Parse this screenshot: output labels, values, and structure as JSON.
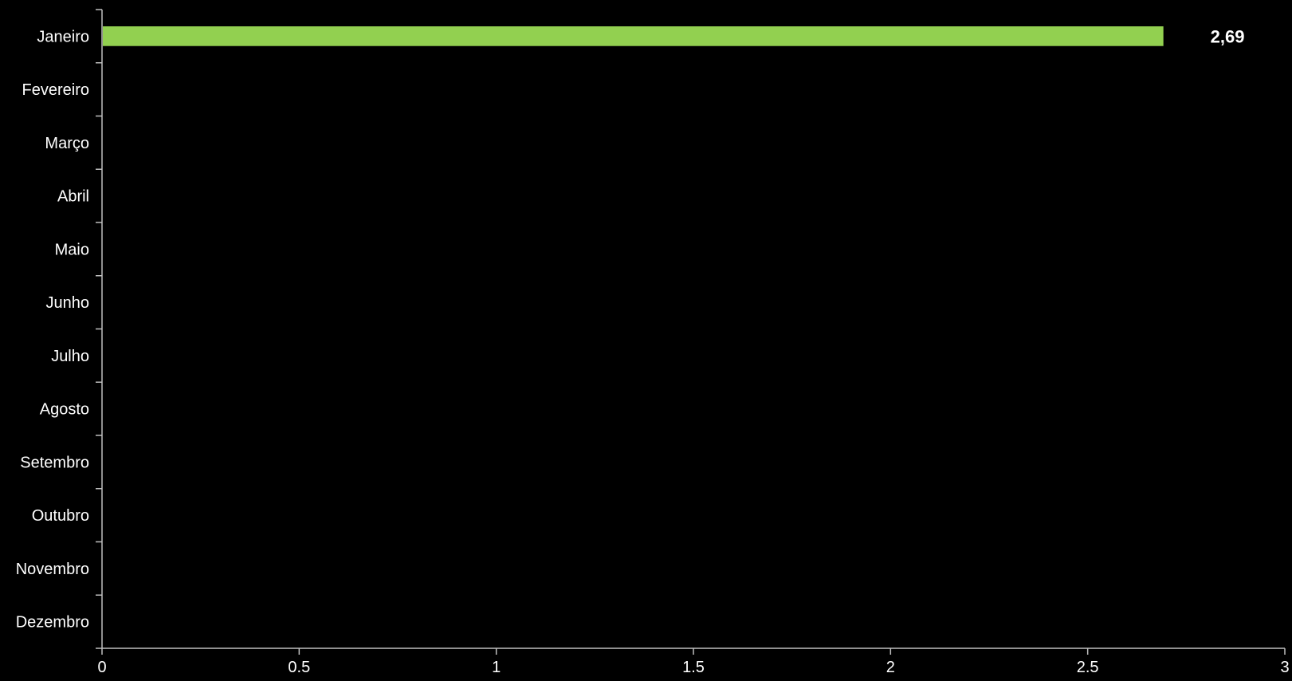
{
  "chart_data": {
    "type": "bar",
    "orientation": "horizontal",
    "categories": [
      "Janeiro",
      "Fevereiro",
      "Março",
      "Abril",
      "Maio",
      "Junho",
      "Julho",
      "Agosto",
      "Setembro",
      "Outubro",
      "Novembro",
      "Dezembro"
    ],
    "values": [
      2.69,
      null,
      null,
      null,
      null,
      null,
      null,
      null,
      null,
      null,
      null,
      null
    ],
    "data_labels": [
      "2,69",
      "",
      "",
      "",
      "",
      "",
      "",
      "",
      "",
      "",
      "",
      ""
    ],
    "title": "",
    "xlabel": "",
    "ylabel": "",
    "xlim": [
      0,
      3
    ],
    "x_ticks": [
      0,
      0.5,
      1,
      1.5,
      2,
      2.5,
      3
    ],
    "x_tick_labels": [
      "0",
      "0.5",
      "1",
      "1.5",
      "2",
      "2.5",
      "3"
    ],
    "grid": false,
    "legend": "none",
    "colors": {
      "background": "#000000",
      "bar": "#92d050",
      "axis": "#bfbfbf",
      "text": "#ffffff"
    }
  }
}
